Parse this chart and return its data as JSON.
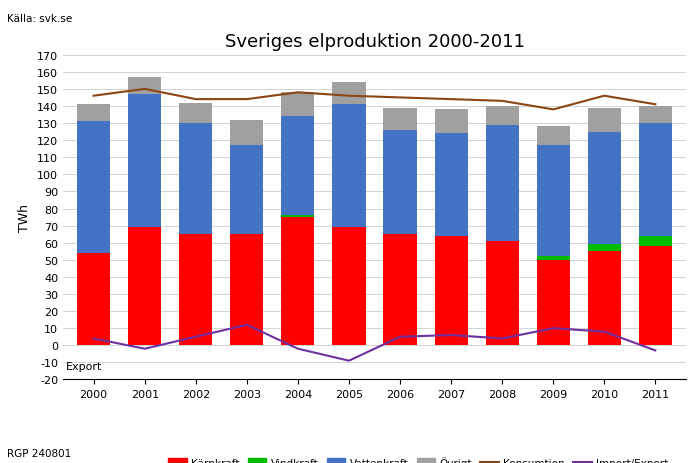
{
  "years": [
    2000,
    2001,
    2002,
    2003,
    2004,
    2005,
    2006,
    2007,
    2008,
    2009,
    2010,
    2011
  ],
  "karnkraft": [
    54,
    69,
    65,
    65,
    75,
    69,
    65,
    64,
    61,
    50,
    55,
    58
  ],
  "vindkraft": [
    0,
    0,
    0,
    0,
    1,
    0,
    0,
    0,
    0,
    2,
    4,
    6
  ],
  "vattenkraft": [
    77,
    78,
    65,
    52,
    58,
    72,
    61,
    60,
    68,
    65,
    66,
    66
  ],
  "ovrigt": [
    10,
    10,
    12,
    15,
    14,
    13,
    13,
    14,
    11,
    11,
    14,
    10
  ],
  "konsumtion": [
    146,
    150,
    144,
    144,
    148,
    146,
    145,
    144,
    143,
    138,
    146,
    141
  ],
  "import_export": [
    4,
    -2,
    5,
    12,
    -2,
    -9,
    5,
    6,
    4,
    10,
    8,
    -3
  ],
  "title": "Sveriges elproduktion 2000-2011",
  "ylabel": "TWh",
  "source_label": "Källa: svk.se",
  "footer_label": "RGP 240801",
  "export_label": "Export",
  "color_karnkraft": "#FF0000",
  "color_vindkraft": "#00BB00",
  "color_vattenkraft": "#4472C4",
  "color_ovrigt": "#A0A0A0",
  "color_konsumtion": "#8B4513",
  "color_import_export": "#7030A0",
  "ylim_min": -20,
  "ylim_max": 170,
  "yticks": [
    -20,
    -10,
    0,
    10,
    20,
    30,
    40,
    50,
    60,
    70,
    80,
    90,
    100,
    110,
    120,
    130,
    140,
    150,
    160,
    170
  ],
  "legend_karnkraft": "Kärnkraft",
  "legend_vindkraft": "Vindkraft",
  "legend_vattenkraft": "Vattenkraft",
  "legend_ovrigt": "Övrigt",
  "legend_konsumtion": "Konsumtion",
  "legend_import_export": "Import/Export",
  "bar_width": 0.65
}
